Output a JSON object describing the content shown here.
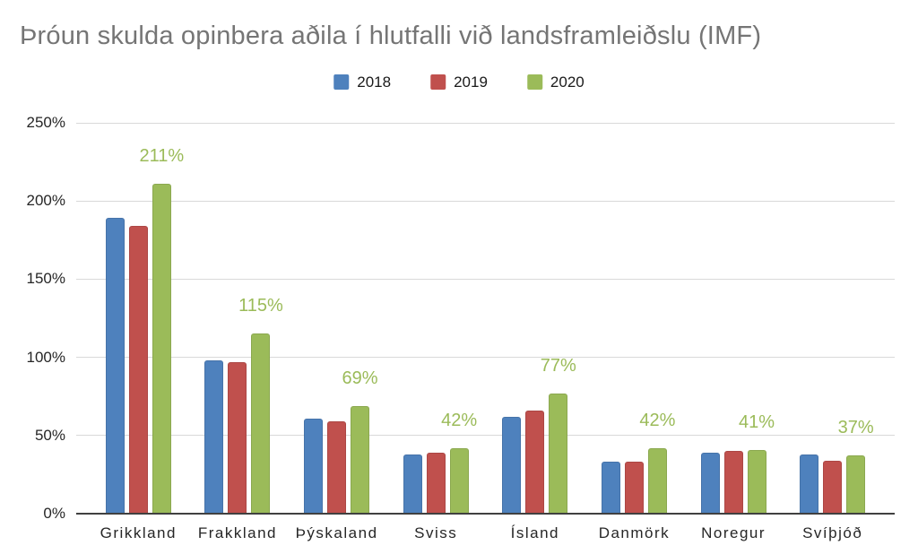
{
  "title": "Þróun skulda opinbera aðila í hlutfalli við landsframleiðslu (IMF)",
  "colors": {
    "title_text": "#757575",
    "axis_text": "#262626",
    "gridline": "#d9d9d9",
    "axis_line": "#404040",
    "series_2018": "#4e81bd",
    "series_2019": "#c0504d",
    "series_2020": "#9bbb59",
    "data_label": "#9bbb59"
  },
  "chart_data": {
    "type": "bar",
    "title": "Þróun skulda opinbera aðila í hlutfalli við landsframleiðslu (IMF)",
    "categories": [
      "Grikkland",
      "Frakkland",
      "Þýskaland",
      "Sviss",
      "Ísland",
      "Danmörk",
      "Noregur",
      "Svíþjóð"
    ],
    "series": [
      {
        "name": "2018",
        "color": "#4e81bd",
        "values": [
          189,
          98,
          61,
          38,
          62,
          33,
          39,
          38
        ]
      },
      {
        "name": "2019",
        "color": "#c0504d",
        "values": [
          184,
          97,
          59,
          39,
          66,
          33,
          40,
          34
        ]
      },
      {
        "name": "2020",
        "color": "#9bbb59",
        "values": [
          211,
          115,
          69,
          42,
          77,
          42,
          41,
          37
        ]
      }
    ],
    "data_labels": {
      "on_series": "2020",
      "texts": [
        "211%",
        "115%",
        "69%",
        "42%",
        "77%",
        "42%",
        "41%",
        "37%"
      ],
      "color": "#9bbb59"
    },
    "xlabel": "",
    "ylabel": "",
    "ylim": [
      0,
      250
    ],
    "y_tick_step": 50,
    "y_ticks": [
      "0%",
      "50%",
      "100%",
      "150%",
      "200%",
      "250%"
    ],
    "grid": true,
    "legend_position": "top"
  }
}
